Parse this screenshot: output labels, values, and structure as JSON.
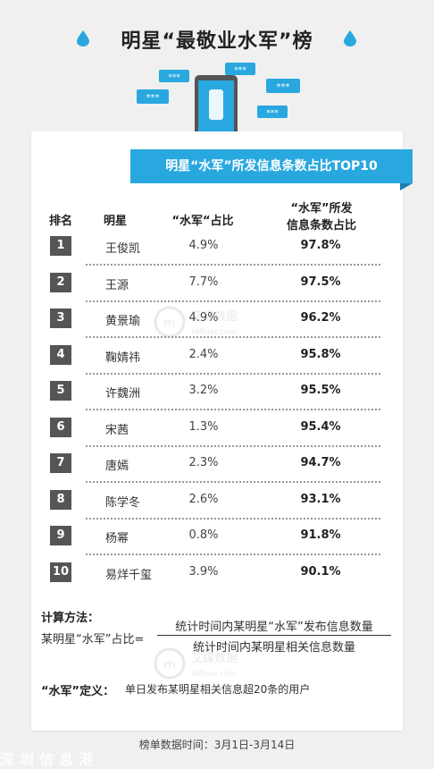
{
  "title": "明星“最敬业水军”榜",
  "banner": "明星“水军”所发信息条数占比TOP10",
  "table_headers": {
    "rank": "排名",
    "star": "明星",
    "water_ratio": "“水军“占比",
    "share_line1": "“水军”所发",
    "share_line2": "信息条数占比"
  },
  "chart_data": {
    "type": "table",
    "title": "明星“水军”所发信息条数占比TOP10",
    "columns": [
      "排名",
      "明星",
      "“水军“占比",
      "“水军”所发信息条数占比"
    ],
    "rows": [
      {
        "rank": "1",
        "star": "王俊凯",
        "water_ratio": "4.9%",
        "message_share": "97.8%"
      },
      {
        "rank": "2",
        "star": "王源",
        "water_ratio": "7.7%",
        "message_share": "97.5%"
      },
      {
        "rank": "3",
        "star": "黄景瑜",
        "water_ratio": "4.9%",
        "message_share": "96.2%"
      },
      {
        "rank": "4",
        "star": "鞠婧祎",
        "water_ratio": "2.4%",
        "message_share": "95.8%"
      },
      {
        "rank": "5",
        "star": "许魏洲",
        "water_ratio": "3.2%",
        "message_share": "95.5%"
      },
      {
        "rank": "6",
        "star": "宋茜",
        "water_ratio": "1.3%",
        "message_share": "95.4%"
      },
      {
        "rank": "7",
        "star": "唐嫣",
        "water_ratio": "2.3%",
        "message_share": "94.7%"
      },
      {
        "rank": "8",
        "star": "陈学冬",
        "water_ratio": "2.6%",
        "message_share": "93.1%"
      },
      {
        "rank": "9",
        "star": "杨幂",
        "water_ratio": "0.8%",
        "message_share": "91.8%"
      },
      {
        "rank": "10",
        "star": "易烊千玺",
        "water_ratio": "3.9%",
        "message_share": "90.1%"
      }
    ]
  },
  "method": {
    "label": "计算方法：",
    "lhs": "某明星“水军”占比=",
    "numerator": "统计时间内某明星“水军”发布信息数量",
    "denominator": "统计时间内某明星相关信息数量"
  },
  "definition": {
    "term": "“水军”定义：",
    "text": "单日发布某明星相关信息超20条的用户"
  },
  "footer": "榜单数据时间：3月1日-3月14日",
  "watermark": {
    "brand_cn": "艾媒数据",
    "brand_url": "iiMiner.com",
    "bottom_strip": "深圳信息港"
  },
  "colors": {
    "accent": "#29a8e0",
    "rank_box": "#555555",
    "background": "#f0f0f0"
  }
}
